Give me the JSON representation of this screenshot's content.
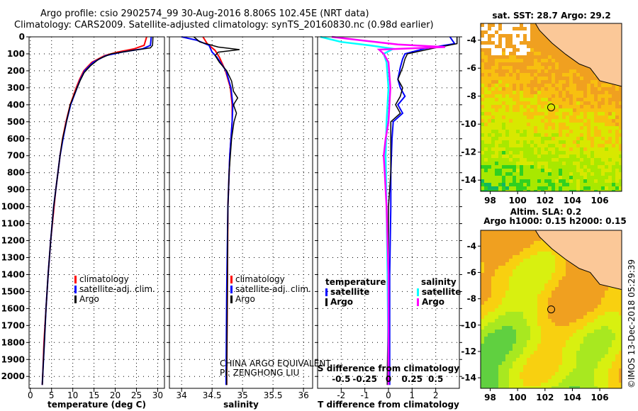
{
  "header": {
    "line1": "Argo profile: csio 2902574_99 30-Aug-2016 8.806S 102.45E (NRT data)",
    "line2": "Climatology: CARS2009. Satellite-adjusted climatology: synTS_20160830.nc (0.98d earlier)"
  },
  "side_label": "©IMOS 13-Dec-2018 05:29:39",
  "pi_note": {
    "line1": "CHINA ARGO EQUIVALENT",
    "line2": "PI: ZENGHONG LIU"
  },
  "colors": {
    "climatology": "#ff0000",
    "satellite": "#0000ff",
    "argo": "#000000",
    "s_satellite": "#00ffff",
    "s_argo": "#ff00ff",
    "land": "#fbc898"
  },
  "chart_data": [
    {
      "type": "line",
      "id": "temperature",
      "xlabel": "temperature (deg C)",
      "ylabel": "",
      "xlim": [
        -0.3,
        31.6
      ],
      "ylim": [
        2070,
        0
      ],
      "xticks": [
        0,
        5,
        10,
        15,
        20,
        25,
        30
      ],
      "yticks": [
        0,
        100,
        200,
        300,
        400,
        500,
        600,
        700,
        800,
        900,
        1000,
        1100,
        1200,
        1300,
        1400,
        1500,
        1600,
        1700,
        1800,
        1900,
        2000
      ],
      "legend": [
        "climatology",
        "satellite-adj. clim.",
        "Argo"
      ],
      "series": [
        {
          "name": "climatology",
          "color": "#ff0000",
          "depth": [
            0,
            50,
            70,
            90,
            110,
            150,
            200,
            250,
            300,
            400,
            500,
            600,
            700,
            800,
            900,
            1000,
            1200,
            1400,
            1600,
            1800,
            2000,
            2050
          ],
          "values": [
            27.4,
            26.8,
            24.5,
            20.5,
            17.5,
            14.5,
            12.6,
            11.6,
            10.8,
            9.4,
            8.4,
            7.6,
            7.0,
            6.5,
            6.0,
            5.6,
            4.8,
            4.2,
            3.7,
            3.2,
            2.9,
            2.8
          ]
        },
        {
          "name": "satellite-adj. clim.",
          "color": "#0000ff",
          "depth": [
            0,
            50,
            70,
            90,
            110,
            150,
            200,
            250,
            300,
            400,
            500,
            600,
            700,
            800,
            900,
            1000,
            1200,
            1400,
            1600,
            1800,
            2000,
            2050
          ],
          "values": [
            28.5,
            28.3,
            26.5,
            21.5,
            17.8,
            14.8,
            12.8,
            11.8,
            11.0,
            9.5,
            8.5,
            7.7,
            7.0,
            6.5,
            6.0,
            5.5,
            4.8,
            4.2,
            3.7,
            3.3,
            2.9,
            2.8
          ]
        },
        {
          "name": "Argo",
          "color": "#000000",
          "depth": [
            0,
            50,
            65,
            80,
            100,
            130,
            170,
            210,
            260,
            300,
            400,
            500,
            600,
            700,
            800,
            900,
            1000,
            1200,
            1400,
            1600,
            1800,
            2000,
            2050
          ],
          "values": [
            28.9,
            28.8,
            28.3,
            24,
            19,
            16.2,
            14.2,
            12.7,
            11.7,
            11.0,
            9.4,
            8.5,
            7.6,
            7.0,
            6.5,
            6.0,
            5.5,
            4.8,
            4.2,
            3.7,
            3.3,
            2.9,
            2.8
          ]
        }
      ]
    },
    {
      "type": "line",
      "id": "salinity",
      "xlabel": "salinity",
      "xlim": [
        33.8,
        36.15
      ],
      "ylim": [
        2070,
        0
      ],
      "xticks": [
        34,
        34.5,
        35,
        35.5,
        36
      ],
      "legend": [
        "climatology",
        "satellite-adj. clim.",
        "Argo"
      ],
      "series": [
        {
          "name": "climatology",
          "color": "#ff0000",
          "depth": [
            0,
            40,
            80,
            120,
            200,
            300,
            400,
            500,
            700,
            1000,
            1500,
            2000,
            2050
          ],
          "values": [
            34.35,
            34.42,
            34.55,
            34.62,
            34.72,
            34.8,
            34.83,
            34.83,
            34.79,
            34.76,
            34.75,
            34.74,
            34.74
          ]
        },
        {
          "name": "satellite-adj. clim.",
          "color": "#0000ff",
          "depth": [
            0,
            20,
            50,
            90,
            120,
            200,
            300,
            400,
            500,
            700,
            1000,
            1500,
            2000,
            2050
          ],
          "values": [
            34.0,
            34.25,
            34.45,
            34.5,
            34.58,
            34.73,
            34.81,
            34.84,
            34.83,
            34.79,
            34.76,
            34.74,
            34.73,
            34.73
          ]
        },
        {
          "name": "Argo",
          "color": "#000000",
          "depth": [
            0,
            30,
            60,
            75,
            90,
            110,
            150,
            200,
            260,
            320,
            360,
            400,
            450,
            500,
            600,
            800,
            1000,
            1500,
            2000,
            2050
          ],
          "values": [
            34.2,
            34.3,
            34.6,
            34.95,
            34.6,
            34.55,
            34.62,
            34.74,
            34.82,
            34.85,
            34.92,
            34.85,
            34.9,
            34.86,
            34.82,
            34.78,
            34.76,
            34.75,
            34.74,
            34.74
          ]
        }
      ]
    },
    {
      "type": "line",
      "id": "difference",
      "xlabel": "T difference from climatology",
      "x2label": "S difference from climatology",
      "xlim": [
        -3,
        3
      ],
      "x2lim": [
        -0.75,
        0.75
      ],
      "ylim": [
        2070,
        0
      ],
      "xticks": [
        -2,
        -1,
        0,
        1,
        2
      ],
      "x2ticks": [
        -0.5,
        -0.25,
        0,
        0.25,
        0.5
      ],
      "legend": {
        "temperature_title": "temperature",
        "salinity_title": "salinity",
        "items": [
          "satellite",
          "Argo",
          "satellite",
          "Argo"
        ]
      },
      "series": [
        {
          "name": "T satellite",
          "color": "#0000ff",
          "axis": "T",
          "depth": [
            0,
            40,
            70,
            100,
            130,
            180,
            250,
            300,
            350,
            400,
            450,
            500,
            600,
            800,
            1000,
            1400,
            2000,
            2050
          ],
          "values": [
            2.6,
            2.8,
            1.5,
            0.7,
            0.6,
            0.5,
            0.4,
            0.5,
            0.7,
            0.4,
            0.6,
            0.2,
            0.15,
            0.1,
            0.1,
            0.05,
            0.05,
            0.05
          ]
        },
        {
          "name": "T Argo",
          "color": "#000000",
          "axis": "T",
          "depth": [
            0,
            40,
            70,
            100,
            130,
            180,
            250,
            300,
            350,
            400,
            450,
            500,
            600,
            800,
            1000,
            1400,
            2000,
            2050
          ],
          "values": [
            2.9,
            2.9,
            1.8,
            0.8,
            0.7,
            0.6,
            0.4,
            0.6,
            0.5,
            0.3,
            0.5,
            0.1,
            0.1,
            0.1,
            0.0,
            0.0,
            -0.05,
            -0.05
          ]
        },
        {
          "name": "S satellite",
          "color": "#00ffff",
          "axis": "S",
          "depth": [
            0,
            30,
            50,
            70,
            100,
            150,
            300,
            500,
            700,
            1000,
            1400,
            2000,
            2050
          ],
          "values": [
            -0.72,
            -0.5,
            -0.2,
            0.05,
            -0.05,
            -0.02,
            0.0,
            -0.02,
            -0.03,
            -0.02,
            -0.01,
            0.0,
            0.0
          ]
        },
        {
          "name": "S Argo",
          "color": "#ff00ff",
          "axis": "S",
          "depth": [
            0,
            20,
            45,
            60,
            75,
            100,
            150,
            300,
            500,
            600,
            700,
            800,
            1000,
            1400,
            2000,
            2050
          ],
          "values": [
            -0.6,
            -0.3,
            0.1,
            0.6,
            -0.1,
            -0.05,
            0.0,
            0.02,
            0.0,
            -0.03,
            -0.05,
            -0.04,
            -0.02,
            0.0,
            0.0,
            0.0
          ]
        }
      ]
    },
    {
      "type": "heatmap",
      "id": "sst_map",
      "title": "sat. SST: 28.7 Argo: 29.2",
      "xlim": [
        97.3,
        107.6
      ],
      "ylim": [
        -14.8,
        -2.8
      ],
      "xticks": [
        98,
        100,
        102,
        104,
        106
      ],
      "yticks": [
        -4,
        -6,
        -8,
        -10,
        -12,
        -14
      ],
      "marker": [
        102.45,
        -8.806
      ]
    },
    {
      "type": "heatmap",
      "id": "sla_map",
      "title1": "Altim. SLA: 0.2",
      "title2": "Argo h1000: 0.15 h2000: 0.15",
      "xlim": [
        97.3,
        107.6
      ],
      "ylim": [
        -14.8,
        -2.8
      ],
      "xticks": [
        98,
        100,
        102,
        104,
        106
      ],
      "yticks": [
        -4,
        -6,
        -8,
        -10,
        -12,
        -14
      ],
      "marker": [
        102.45,
        -8.806
      ]
    }
  ]
}
